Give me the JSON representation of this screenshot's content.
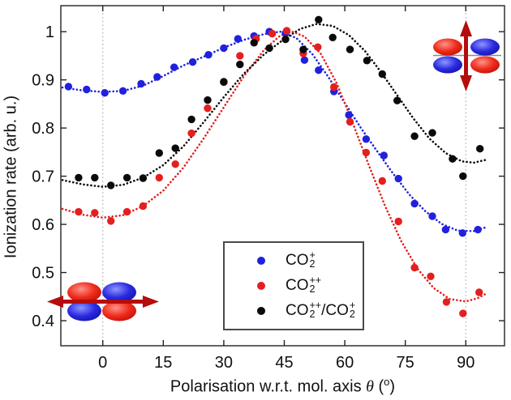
{
  "figure": {
    "y_axis_title": "Ionization rate (arb. u.)",
    "x_axis": {
      "pre": "Polarisation w.r.t. mol. axis ",
      "theta": "θ",
      "open": " (",
      "deg": "o",
      "close": ")"
    }
  },
  "legend": {
    "items": [
      {
        "name": "CO2+",
        "color": "#2121dc",
        "base": "CO",
        "sub": "2",
        "sup": "+"
      },
      {
        "name": "CO2++",
        "color": "#e41f1f",
        "base": "CO",
        "sub": "2",
        "sup": "++"
      },
      {
        "name": "CO2++/CO2+",
        "color": "#0a0a0a",
        "base": "CO",
        "sub": "2",
        "sup": "++",
        "base2": "/CO",
        "sub2": "2",
        "sup2": "+"
      }
    ]
  },
  "colors": {
    "blue_series": "#2121dc",
    "red_series": "#e41f1f",
    "black_series": "#0a0a0a",
    "arrow_red": "#b50d0d",
    "guide_gray": "#aaaaaa",
    "frame": "#222222"
  },
  "chart_data": {
    "type": "scatter",
    "title": "",
    "xlabel": "Polarisation w.r.t. mol. axis θ (°)",
    "ylabel": "Ionization rate (arb. u.)",
    "xlim": [
      -10.4,
      99.6
    ],
    "ylim": [
      0.348,
      1.054
    ],
    "x_ticks": [
      "0",
      "15",
      "30",
      "45",
      "60",
      "75",
      "90"
    ],
    "x_tick_values": [
      0,
      15,
      30,
      45,
      60,
      75,
      90
    ],
    "y_ticks": [
      "0.4",
      "0.5",
      "0.6",
      "0.7",
      "0.8",
      "0.9",
      "1"
    ],
    "y_tick_values": [
      0.4,
      0.5,
      0.6,
      0.7,
      0.8,
      0.9,
      1
    ],
    "guides_x": [
      0,
      90
    ],
    "grid": "off",
    "legend_position": "inside lower center",
    "marker": "filled-circle",
    "fit_style": "dotted",
    "series": [
      {
        "name": "CO2+",
        "slug": "co2-plus",
        "color": "#2121dc",
        "points": [
          [
            -8.5,
            0.886
          ],
          [
            -4,
            0.88
          ],
          [
            0.5,
            0.873
          ],
          [
            5,
            0.877
          ],
          [
            9.5,
            0.892
          ],
          [
            13.5,
            0.906
          ],
          [
            17.7,
            0.926
          ],
          [
            22.3,
            0.937
          ],
          [
            26.2,
            0.952
          ],
          [
            30,
            0.966
          ],
          [
            33.5,
            0.985
          ],
          [
            37.5,
            0.991
          ],
          [
            41.3,
            1.0
          ],
          [
            45.3,
            0.997
          ],
          [
            50,
            0.941
          ],
          [
            53.5,
            0.92
          ],
          [
            57.3,
            0.876
          ],
          [
            61,
            0.827
          ],
          [
            65.3,
            0.777
          ],
          [
            69.7,
            0.743
          ],
          [
            73.3,
            0.695
          ],
          [
            77.3,
            0.643
          ],
          [
            81.7,
            0.617
          ],
          [
            85,
            0.589
          ],
          [
            89.2,
            0.582
          ],
          [
            93,
            0.589
          ]
        ],
        "fit": [
          [
            -10,
            0.884
          ],
          [
            -5,
            0.878
          ],
          [
            0,
            0.875
          ],
          [
            5,
            0.877
          ],
          [
            10,
            0.888
          ],
          [
            15,
            0.908
          ],
          [
            20,
            0.93
          ],
          [
            25,
            0.948
          ],
          [
            30,
            0.967
          ],
          [
            35,
            0.983
          ],
          [
            40,
            0.995
          ],
          [
            44,
            1.0
          ],
          [
            48,
            0.987
          ],
          [
            52,
            0.953
          ],
          [
            56,
            0.905
          ],
          [
            60,
            0.852
          ],
          [
            64,
            0.8
          ],
          [
            68,
            0.752
          ],
          [
            72,
            0.705
          ],
          [
            76,
            0.662
          ],
          [
            80,
            0.627
          ],
          [
            84,
            0.601
          ],
          [
            88,
            0.587
          ],
          [
            92,
            0.586
          ],
          [
            95,
            0.594
          ]
        ]
      },
      {
        "name": "CO2++",
        "slug": "co2-plusplus",
        "color": "#e41f1f",
        "points": [
          [
            -6,
            0.626
          ],
          [
            -2,
            0.624
          ],
          [
            2,
            0.607
          ],
          [
            6,
            0.626
          ],
          [
            10,
            0.638
          ],
          [
            14,
            0.697
          ],
          [
            18,
            0.725
          ],
          [
            22,
            0.789
          ],
          [
            26,
            0.841
          ],
          [
            30,
            0.895
          ],
          [
            34,
            0.95
          ],
          [
            38,
            0.985
          ],
          [
            42,
            0.996
          ],
          [
            45.6,
            1.002
          ],
          [
            49.7,
            0.955
          ],
          [
            53.3,
            0.968
          ],
          [
            57.3,
            0.885
          ],
          [
            61.3,
            0.813
          ],
          [
            65.3,
            0.749
          ],
          [
            69.3,
            0.69
          ],
          [
            73.3,
            0.606
          ],
          [
            77.3,
            0.51
          ],
          [
            81.3,
            0.492
          ],
          [
            85.2,
            0.439
          ],
          [
            89.3,
            0.415
          ],
          [
            93.3,
            0.459
          ]
        ],
        "fit": [
          [
            -10,
            0.632
          ],
          [
            -5,
            0.62
          ],
          [
            0,
            0.614
          ],
          [
            5,
            0.619
          ],
          [
            10,
            0.638
          ],
          [
            15,
            0.67
          ],
          [
            20,
            0.718
          ],
          [
            25,
            0.778
          ],
          [
            30,
            0.843
          ],
          [
            35,
            0.908
          ],
          [
            40,
            0.962
          ],
          [
            44,
            0.992
          ],
          [
            47,
            1.0
          ],
          [
            50,
            0.99
          ],
          [
            54,
            0.955
          ],
          [
            58,
            0.893
          ],
          [
            62,
            0.81
          ],
          [
            66,
            0.722
          ],
          [
            70,
            0.638
          ],
          [
            74,
            0.565
          ],
          [
            78,
            0.508
          ],
          [
            82,
            0.468
          ],
          [
            86,
            0.445
          ],
          [
            90,
            0.44
          ],
          [
            93,
            0.447
          ],
          [
            95,
            0.456
          ]
        ]
      },
      {
        "name": "CO2++/CO2+",
        "slug": "ratio",
        "color": "#0a0a0a",
        "points": [
          [
            -6,
            0.697
          ],
          [
            -2,
            0.697
          ],
          [
            2,
            0.681
          ],
          [
            6,
            0.697
          ],
          [
            10,
            0.696
          ],
          [
            14,
            0.748
          ],
          [
            18,
            0.758
          ],
          [
            22,
            0.818
          ],
          [
            26,
            0.858
          ],
          [
            30,
            0.896
          ],
          [
            34,
            0.932
          ],
          [
            37.5,
            0.977
          ],
          [
            41.3,
            0.966
          ],
          [
            45.3,
            0.984
          ],
          [
            49.7,
            0.963
          ],
          [
            53.5,
            1.025
          ],
          [
            57,
            0.988
          ],
          [
            61.3,
            0.963
          ],
          [
            65.5,
            0.94
          ],
          [
            69.3,
            0.912
          ],
          [
            73,
            0.857
          ],
          [
            77.3,
            0.783
          ],
          [
            81.7,
            0.79
          ],
          [
            86.7,
            0.736
          ],
          [
            89.3,
            0.7
          ],
          [
            93.5,
            0.757
          ]
        ],
        "fit": [
          [
            -10,
            0.692
          ],
          [
            -5,
            0.683
          ],
          [
            0,
            0.678
          ],
          [
            5,
            0.682
          ],
          [
            10,
            0.697
          ],
          [
            15,
            0.723
          ],
          [
            20,
            0.762
          ],
          [
            25,
            0.812
          ],
          [
            30,
            0.864
          ],
          [
            35,
            0.913
          ],
          [
            40,
            0.953
          ],
          [
            45,
            0.985
          ],
          [
            49,
            1.006
          ],
          [
            53,
            1.016
          ],
          [
            57,
            1.012
          ],
          [
            61,
            0.993
          ],
          [
            65,
            0.96
          ],
          [
            69,
            0.916
          ],
          [
            73,
            0.868
          ],
          [
            77,
            0.82
          ],
          [
            81,
            0.778
          ],
          [
            85,
            0.748
          ],
          [
            89,
            0.731
          ],
          [
            92,
            0.728
          ],
          [
            95,
            0.734
          ]
        ]
      }
    ]
  }
}
